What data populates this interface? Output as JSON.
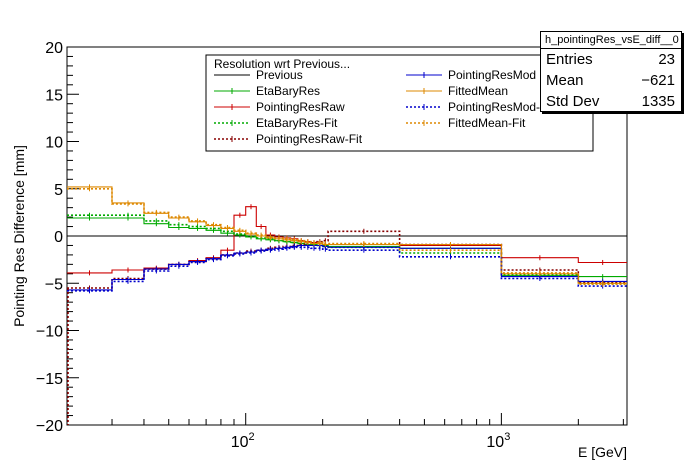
{
  "chart_data": {
    "type": "line",
    "ylabel": "Pointing Res Difference [mm]",
    "xlabel": "E [GeV]",
    "xscale": "log",
    "xlim": [
      20,
      3100
    ],
    "ylim": [
      -20,
      20
    ],
    "x_ticks": [
      {
        "value": 100,
        "label": "10",
        "exp": "2"
      },
      {
        "value": 1000,
        "label": "10",
        "exp": "3"
      }
    ],
    "y_ticks": [
      -20,
      -15,
      -10,
      -5,
      0,
      5,
      10,
      15,
      20
    ],
    "grid": false,
    "bin_edges": [
      20,
      30,
      40,
      50,
      60,
      70,
      80,
      90,
      100,
      110,
      120,
      130,
      140,
      150,
      160,
      170,
      180,
      190,
      200,
      210,
      400,
      1000,
      2000,
      3100
    ],
    "legend": {
      "title": "Resolution wrt Previous...",
      "placement": "top-center",
      "entries": [
        "Previous",
        "EtaBaryRes",
        "PointingResRaw",
        "EtaBaryRes-Fit",
        "PointingResRaw-Fit",
        "PointingResMod",
        "FittedMean",
        "PointingResMod-Fit",
        "FittedMean-Fit"
      ]
    },
    "series": [
      {
        "name": "Previous",
        "color": "#000000",
        "style": "solid",
        "values": [
          0,
          0,
          0,
          0,
          0,
          0,
          0,
          0,
          0,
          0,
          0,
          0,
          0,
          0,
          0,
          0,
          0,
          0,
          0,
          0,
          0,
          0,
          0
        ]
      },
      {
        "name": "EtaBaryRes",
        "color": "#00aa00",
        "style": "solid",
        "values": [
          1.9,
          1.9,
          1.3,
          0.9,
          0.8,
          0.6,
          0.3,
          0.1,
          -0.1,
          -0.3,
          -0.4,
          -0.5,
          -0.6,
          -0.7,
          -0.8,
          -0.9,
          -0.9,
          -1.0,
          -1.0,
          -1.1,
          -1.3,
          -4.2,
          -4.3
        ]
      },
      {
        "name": "PointingResRaw",
        "color": "#cc0000",
        "style": "solid",
        "values": [
          -3.9,
          -3.6,
          -3.4,
          -3.0,
          -2.6,
          -2.3,
          -1.5,
          2.2,
          3.1,
          1.0,
          0.1,
          -0.1,
          -0.2,
          -0.3,
          -0.5,
          -0.6,
          -0.7,
          -0.8,
          -0.9,
          -0.9,
          -1.0,
          -2.3,
          -2.8
        ]
      },
      {
        "name": "EtaBaryRes-Fit",
        "color": "#00aa00",
        "style": "dotted",
        "values": [
          2.2,
          2.2,
          1.6,
          1.2,
          1.0,
          0.8,
          0.5,
          0.2,
          0.0,
          -0.2,
          -0.3,
          -0.5,
          -0.6,
          -0.7,
          -0.8,
          -0.9,
          -1.0,
          -1.0,
          -1.1,
          -1.2,
          -1.8,
          -4.1,
          -5.0
        ]
      },
      {
        "name": "PointingResRaw-Fit",
        "color": "#880000",
        "style": "dotted",
        "values": [
          -5.5,
          -4.5,
          -3.5,
          -3.0,
          -2.7,
          -2.4,
          -2.0,
          -1.8,
          -1.6,
          -1.5,
          -1.3,
          -1.2,
          -1.1,
          -1.0,
          -0.9,
          -0.8,
          -0.7,
          -0.6,
          -0.5,
          0.5,
          -0.9,
          -3.6,
          -4.9
        ]
      },
      {
        "name": "PointingResMod",
        "color": "#0000cc",
        "style": "solid",
        "values": [
          -5.7,
          -4.6,
          -3.5,
          -3.0,
          -2.7,
          -2.4,
          -2.0,
          -1.8,
          -1.7,
          -1.5,
          -1.4,
          -1.3,
          -1.2,
          -1.1,
          -1.0,
          -1.0,
          -1.0,
          -1.0,
          -1.1,
          -1.2,
          -1.3,
          -4.3,
          -4.8
        ]
      },
      {
        "name": "FittedMean",
        "color": "#dd8800",
        "style": "solid",
        "values": [
          5.2,
          3.5,
          2.4,
          1.9,
          1.5,
          1.1,
          0.8,
          0.5,
          0.2,
          0.0,
          -0.2,
          -0.3,
          -0.4,
          -0.5,
          -0.6,
          -0.7,
          -0.8,
          -0.8,
          -0.9,
          -0.9,
          -0.9,
          -4.0,
          -5.0
        ]
      },
      {
        "name": "PointingResMod-Fit",
        "color": "#0000cc",
        "style": "dotted",
        "values": [
          -5.8,
          -4.8,
          -3.7,
          -3.2,
          -2.8,
          -2.5,
          -2.1,
          -1.9,
          -1.8,
          -1.6,
          -1.5,
          -1.4,
          -1.3,
          -1.2,
          -1.2,
          -1.2,
          -1.3,
          -1.3,
          -1.4,
          -1.5,
          -2.2,
          -4.5,
          -5.3
        ]
      },
      {
        "name": "FittedMean-Fit",
        "color": "#dd8800",
        "style": "dotted",
        "values": [
          5.0,
          3.4,
          2.5,
          2.0,
          1.6,
          1.2,
          0.9,
          0.6,
          0.3,
          0.1,
          -0.1,
          -0.2,
          -0.3,
          -0.4,
          -0.5,
          -0.6,
          -0.7,
          -0.7,
          -0.8,
          -0.8,
          -1.5,
          -3.9,
          -5.1
        ]
      }
    ]
  },
  "stats": {
    "title": "h_pointingRes_vsE_diff__0",
    "rows": [
      {
        "key": "Entries",
        "value": "23"
      },
      {
        "key": "Mean",
        "value": "−621"
      },
      {
        "key": "Std Dev",
        "value": "1335"
      }
    ]
  }
}
